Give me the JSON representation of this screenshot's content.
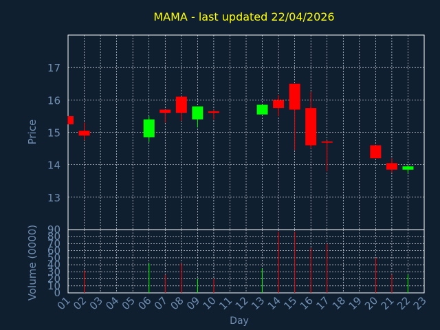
{
  "title": "MAMA - last updated 22/04/2026",
  "colors": {
    "background": "#0f1f30",
    "title": "#ffff00",
    "axis_label": "#6f8fb3",
    "tick_label": "#6f8fb3",
    "frame": "#ffffff",
    "grid": "#ffffff",
    "up": "#00ff00",
    "down": "#ff0000"
  },
  "chart_data": {
    "type": "candlestick",
    "title": "MAMA - last updated 22/04/2026",
    "xlabel": "Day",
    "ylabel": "Price",
    "volume_label": "Volume (0000)",
    "grid": true,
    "x_ticks": [
      "01",
      "02",
      "03",
      "04",
      "05",
      "06",
      "07",
      "08",
      "09",
      "10",
      "11",
      "12",
      "13",
      "14",
      "15",
      "16",
      "17",
      "18",
      "19",
      "20",
      "21",
      "22",
      "23"
    ],
    "price_ticks": [
      13,
      14,
      15,
      16,
      17
    ],
    "price_ylim": [
      12,
      18
    ],
    "volume_ticks": [
      0,
      10,
      20,
      30,
      40,
      50,
      60,
      70,
      80,
      90
    ],
    "volume_ylim": [
      0,
      90
    ],
    "candles": [
      {
        "x": 1,
        "open": 15.5,
        "high": 15.5,
        "low": 15.25,
        "close": 15.25,
        "volume": 0
      },
      {
        "x": 2,
        "open": 15.05,
        "high": 15.3,
        "low": 14.75,
        "close": 14.9,
        "volume": 32
      },
      {
        "x": 6,
        "open": 14.85,
        "high": 15.5,
        "low": 14.7,
        "close": 15.4,
        "volume": 42
      },
      {
        "x": 7,
        "open": 15.7,
        "high": 15.7,
        "low": 15.3,
        "close": 15.6,
        "volume": 26
      },
      {
        "x": 8,
        "open": 16.1,
        "high": 16.1,
        "low": 15.35,
        "close": 15.6,
        "volume": 42
      },
      {
        "x": 9,
        "open": 15.4,
        "high": 15.8,
        "low": 15.15,
        "close": 15.8,
        "volume": 20
      },
      {
        "x": 10,
        "open": 15.65,
        "high": 15.7,
        "low": 15.4,
        "close": 15.6,
        "volume": 20
      },
      {
        "x": 13,
        "open": 15.55,
        "high": 15.85,
        "low": 15.55,
        "close": 15.85,
        "volume": 35
      },
      {
        "x": 14,
        "open": 16.0,
        "high": 16.15,
        "low": 15.5,
        "close": 15.75,
        "volume": 87
      },
      {
        "x": 15,
        "open": 16.5,
        "high": 16.5,
        "low": 14.45,
        "close": 15.7,
        "volume": 87
      },
      {
        "x": 16,
        "open": 15.75,
        "high": 16.25,
        "low": 14.5,
        "close": 14.6,
        "volume": 64
      },
      {
        "x": 17,
        "open": 14.72,
        "high": 14.75,
        "low": 13.8,
        "close": 14.68,
        "volume": 70
      },
      {
        "x": 20,
        "open": 14.6,
        "high": 14.6,
        "low": 14.2,
        "close": 14.2,
        "volume": 50
      },
      {
        "x": 21,
        "open": 14.05,
        "high": 14.2,
        "low": 13.75,
        "close": 13.85,
        "volume": 26
      },
      {
        "x": 22,
        "open": 13.85,
        "high": 14.0,
        "low": 13.75,
        "close": 13.95,
        "volume": 26
      }
    ]
  }
}
